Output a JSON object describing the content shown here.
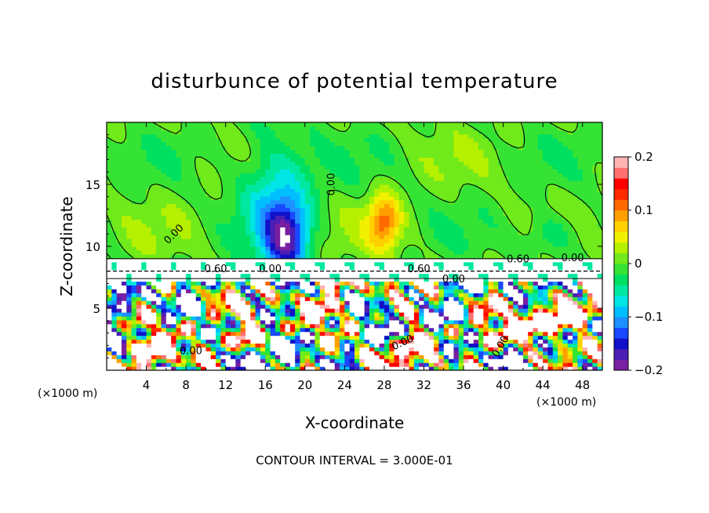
{
  "chart_data": {
    "type": "heatmap",
    "title": "disturbunce of potential temperature",
    "xlabel": "X-coordinate",
    "ylabel": "Z-coordinate",
    "x_unit": "(×1000 m)",
    "x_unit_right": "(×1000 m)",
    "xlim": [
      0,
      50
    ],
    "ylim": [
      0,
      20
    ],
    "x_ticks": [
      "4",
      "8",
      "12",
      "16",
      "20",
      "24",
      "28",
      "32",
      "36",
      "40",
      "44",
      "48"
    ],
    "x_tick_values": [
      4,
      8,
      12,
      16,
      20,
      24,
      28,
      32,
      36,
      40,
      44,
      48
    ],
    "y_ticks": [
      "5",
      "10",
      "15"
    ],
    "y_tick_values": [
      5,
      10,
      15
    ],
    "colorbar": {
      "range": [
        -0.2,
        0.2
      ],
      "tick_labels": [
        "0.2",
        "0.1",
        "0",
        "−0.1",
        "−0.2"
      ],
      "tick_values": [
        0.2,
        0.1,
        0,
        -0.1,
        -0.2
      ],
      "colors": [
        "#7a1fa2",
        "#4b1fb5",
        "#1010c8",
        "#1848ff",
        "#1e90ff",
        "#00bfff",
        "#00e5e5",
        "#00e8a0",
        "#00e060",
        "#35e335",
        "#70ea1a",
        "#b4f000",
        "#f0f000",
        "#ffd000",
        "#ffa000",
        "#ff6a00",
        "#ff2a00",
        "#ff0000",
        "#ff7070",
        "#ffb4b4"
      ]
    },
    "contour_labels": [
      "0.00",
      "0.00",
      "0.00",
      "0.60",
      "0.00",
      "0.60",
      "0.60",
      "0.00",
      "0.00",
      "0.00",
      "0.00"
    ],
    "contour_interval_text": "CONTOUR INTERVAL = 3.000E-01",
    "grid": false
  }
}
